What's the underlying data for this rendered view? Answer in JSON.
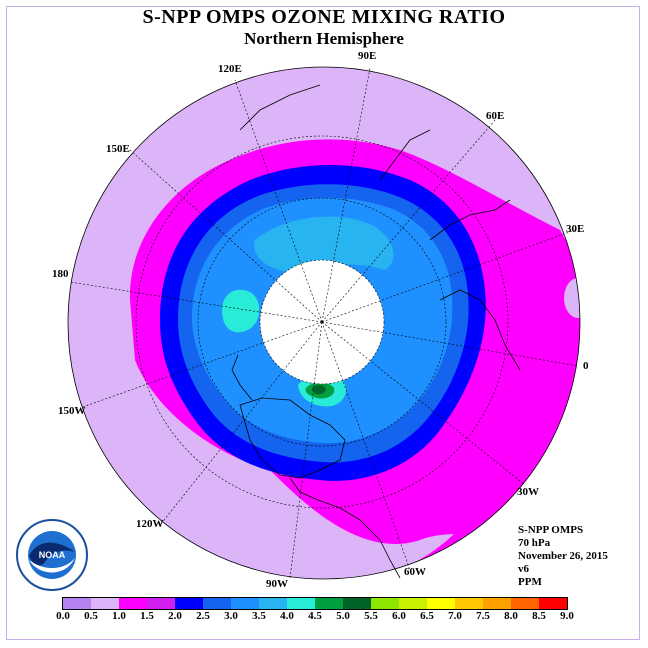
{
  "header": {
    "title": "S-NPP OMPS OZONE MIXING RATIO",
    "subtitle": "Northern Hemisphere"
  },
  "longitude_labels": [
    "90E",
    "60E",
    "30E",
    "0",
    "30W",
    "60W",
    "90W",
    "120W",
    "150W",
    "180",
    "150E",
    "120E"
  ],
  "info": {
    "instrument": "S-NPP OMPS",
    "level": "70 hPa",
    "date": "November 26, 2015",
    "version": "v6",
    "units": "PPM"
  },
  "logo": {
    "text": "NOAA",
    "icon": "noaa-logo-icon"
  },
  "legend": {
    "ticks": [
      "0.0",
      "0.5",
      "1.0",
      "1.5",
      "2.0",
      "2.5",
      "3.0",
      "3.5",
      "4.0",
      "4.5",
      "5.0",
      "5.5",
      "6.0",
      "6.5",
      "7.0",
      "7.5",
      "8.0",
      "8.5",
      "9.0"
    ],
    "colors": [
      "#b582f0",
      "#dcb4f8",
      "#ff00ff",
      "#d020f0",
      "#0000ff",
      "#1464f0",
      "#1e90ff",
      "#28b4f0",
      "#28ecd8",
      "#00a040",
      "#006428",
      "#8ce600",
      "#c8f000",
      "#ffff00",
      "#ffc800",
      "#ffa000",
      "#ff6400",
      "#ff0000",
      "#8b5a3c"
    ]
  },
  "colors": {
    "background_purple": "#dcb4f8",
    "magenta_band": "#ff00ff",
    "dark_blue_band": "#0000ff",
    "mid_blue": "#1464f0",
    "light_blue": "#1e90ff",
    "pale_blue": "#28b4f0",
    "cyan": "#28ecd8",
    "green": "#00a040",
    "dark_green": "#006428",
    "no_data": "#ffffff"
  }
}
